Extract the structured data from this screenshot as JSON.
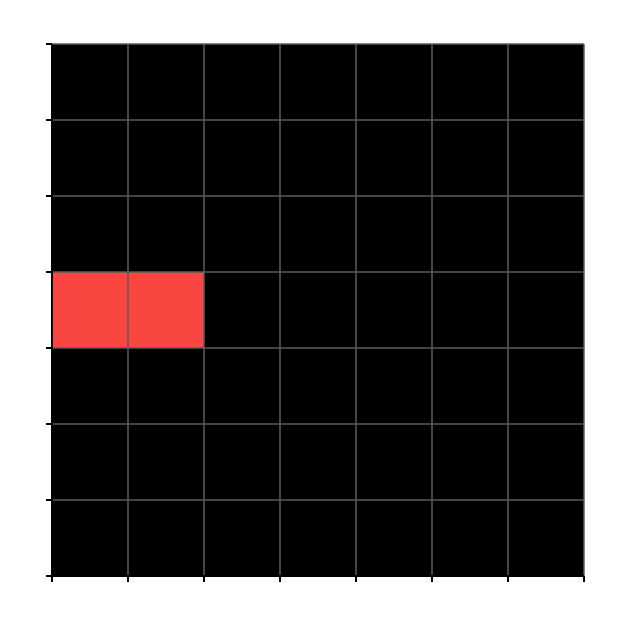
{
  "board": {
    "rows": 7,
    "cols": 7,
    "background_color": "#000000",
    "gridline_color": "#5a5a5a",
    "axis_color": "#000000",
    "filled_color": "#fa4640",
    "filled_cells": [
      {
        "row": 3,
        "col": 0
      },
      {
        "row": 3,
        "col": 1
      }
    ]
  }
}
